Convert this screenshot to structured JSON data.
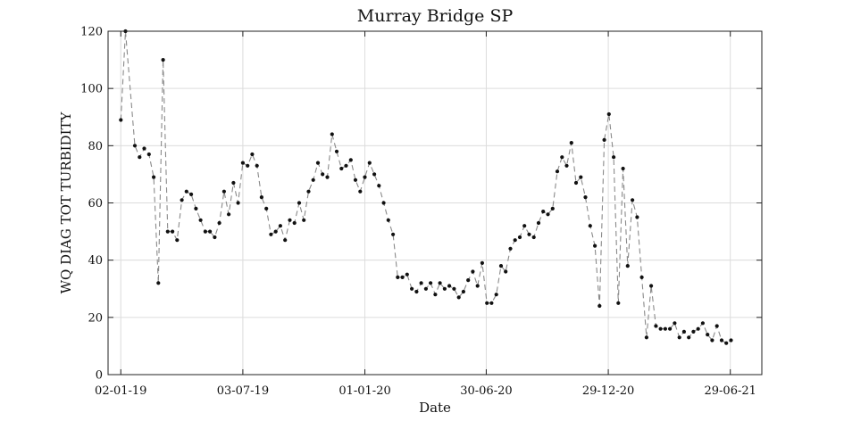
{
  "chart_data": {
    "type": "line",
    "title": "Murray Bridge SP",
    "xlabel": "Date",
    "ylabel": "WQ DIAG TOT TURBIDITY",
    "x_tick_labels": [
      "02-01-19",
      "03-07-19",
      "01-01-20",
      "30-06-20",
      "29-12-20",
      "29-06-21"
    ],
    "x_ticks": [
      "2019-01-02",
      "2019-07-03",
      "2020-01-01",
      "2020-06-30",
      "2020-12-29",
      "2021-06-29"
    ],
    "xlim": [
      "2018-12-14",
      "2021-08-15"
    ],
    "ylim": [
      0,
      120
    ],
    "y_ticks": [
      0,
      20,
      40,
      60,
      80,
      100,
      120
    ],
    "grid": true,
    "series": [
      {
        "style": "dashed line with markers",
        "color": "#8a8a8a",
        "marker_color": "#111111",
        "x": [
          "2019-01-02",
          "2019-01-09",
          "2019-01-23",
          "2019-01-30",
          "2019-02-06",
          "2019-02-13",
          "2019-02-20",
          "2019-02-27",
          "2019-03-06",
          "2019-03-13",
          "2019-03-20",
          "2019-03-27",
          "2019-04-03",
          "2019-04-10",
          "2019-04-17",
          "2019-04-24",
          "2019-05-01",
          "2019-05-08",
          "2019-05-15",
          "2019-05-22",
          "2019-05-29",
          "2019-06-05",
          "2019-06-12",
          "2019-06-19",
          "2019-06-26",
          "2019-07-03",
          "2019-07-10",
          "2019-07-17",
          "2019-07-24",
          "2019-07-31",
          "2019-08-07",
          "2019-08-14",
          "2019-08-21",
          "2019-08-28",
          "2019-09-04",
          "2019-09-11",
          "2019-09-18",
          "2019-09-25",
          "2019-10-02",
          "2019-10-09",
          "2019-10-16",
          "2019-10-23",
          "2019-10-30",
          "2019-11-06",
          "2019-11-13",
          "2019-11-20",
          "2019-11-27",
          "2019-12-04",
          "2019-12-11",
          "2019-12-18",
          "2019-12-25",
          "2020-01-01",
          "2020-01-08",
          "2020-01-15",
          "2020-01-22",
          "2020-01-29",
          "2020-02-05",
          "2020-02-12",
          "2020-02-19",
          "2020-02-26",
          "2020-03-04",
          "2020-03-11",
          "2020-03-18",
          "2020-03-25",
          "2020-04-01",
          "2020-04-08",
          "2020-04-15",
          "2020-04-22",
          "2020-04-29",
          "2020-05-06",
          "2020-05-13",
          "2020-05-20",
          "2020-05-27",
          "2020-06-03",
          "2020-06-10",
          "2020-06-17",
          "2020-06-24",
          "2020-07-01",
          "2020-07-08",
          "2020-07-15",
          "2020-07-22",
          "2020-07-29",
          "2020-08-05",
          "2020-08-12",
          "2020-08-19",
          "2020-08-26",
          "2020-09-02",
          "2020-09-09",
          "2020-09-16",
          "2020-09-23",
          "2020-09-30",
          "2020-10-07",
          "2020-10-14",
          "2020-10-21",
          "2020-10-28",
          "2020-11-04",
          "2020-11-11",
          "2020-11-18",
          "2020-11-25",
          "2020-12-02",
          "2020-12-09",
          "2020-12-16",
          "2020-12-23",
          "2020-12-30",
          "2021-01-06",
          "2021-01-13",
          "2021-01-20",
          "2021-01-27",
          "2021-02-03",
          "2021-02-10",
          "2021-02-17",
          "2021-02-24",
          "2021-03-03",
          "2021-03-10",
          "2021-03-17",
          "2021-03-24",
          "2021-03-31",
          "2021-04-07",
          "2021-04-14",
          "2021-04-21",
          "2021-04-28",
          "2021-05-05",
          "2021-05-12",
          "2021-05-19",
          "2021-05-26",
          "2021-06-02",
          "2021-06-09",
          "2021-06-16",
          "2021-06-23",
          "2021-06-30"
        ],
        "y": [
          89,
          120,
          80,
          76,
          79,
          77,
          69,
          32,
          110,
          50,
          50,
          47,
          61,
          64,
          63,
          58,
          54,
          50,
          50,
          48,
          53,
          64,
          56,
          67,
          60,
          74,
          73,
          77,
          73,
          62,
          58,
          49,
          50,
          52,
          47,
          54,
          53,
          60,
          54,
          64,
          68,
          74,
          70,
          69,
          84,
          78,
          72,
          73,
          75,
          68,
          64,
          69,
          74,
          70,
          66,
          60,
          54,
          49,
          34,
          34,
          35,
          30,
          29,
          32,
          30,
          32,
          28,
          32,
          30,
          31,
          30,
          27,
          29,
          33,
          36,
          31,
          39,
          25,
          25,
          28,
          38,
          36,
          44,
          47,
          48,
          52,
          49,
          48,
          53,
          57,
          56,
          58,
          71,
          76,
          73,
          81,
          67,
          69,
          62,
          52,
          45,
          24,
          82,
          91,
          76,
          25,
          72,
          38,
          61,
          55,
          34,
          13,
          31,
          17,
          16,
          16,
          16,
          18,
          13,
          15,
          13,
          15,
          16,
          18,
          14,
          12,
          17,
          12,
          11,
          12
        ]
      }
    ]
  }
}
